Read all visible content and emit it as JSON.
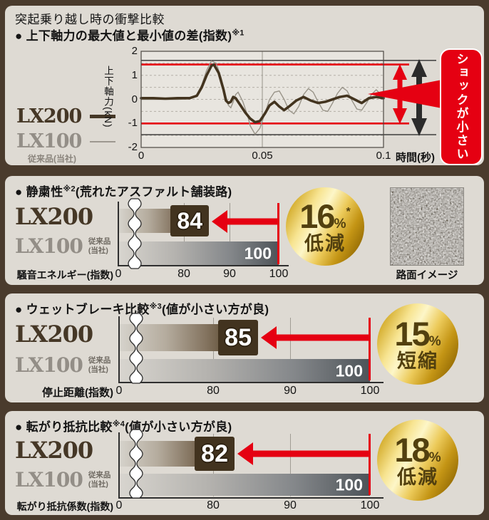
{
  "colors": {
    "background": "#4a3b2d",
    "panel": "#dedad3",
    "red": "#e50012",
    "lx200": "#453726",
    "lx100": "#938e87",
    "gold_text": "#52400f",
    "bar_dark": "#42331f"
  },
  "chart_data": [
    {
      "type": "line",
      "title": "突起乗り越し時の衝撃比較",
      "subtitle": "● 上下軸力の最大値と最小値の差(指数)",
      "subtitle_marker": "※1",
      "ylabel": "上下軸力(kN)",
      "xlabel_unit": "時間(秒)",
      "xlim": [
        0,
        0.1
      ],
      "ylim": [
        -2,
        2
      ],
      "yticks": [
        "2",
        "1",
        "0",
        "-1",
        "-2"
      ],
      "xticks": [
        "0",
        "0.05",
        "0.1"
      ],
      "grid": "dashed 0.5 steps",
      "hlines": {
        "lx200_max": 1.45,
        "lx200_min": -1.0,
        "lx100_max": 1.62,
        "lx100_min": -1.47
      },
      "annotation": "ショックが小さい",
      "series": [
        {
          "name": "LX100",
          "sub": "従来品(当社)",
          "x": [
            0,
            0.005,
            0.01,
            0.015,
            0.02,
            0.023,
            0.025,
            0.027,
            0.029,
            0.031,
            0.033,
            0.035,
            0.036,
            0.037,
            0.038,
            0.039,
            0.04,
            0.042,
            0.044,
            0.045,
            0.047,
            0.049,
            0.051,
            0.053,
            0.055,
            0.057,
            0.059,
            0.061,
            0.063,
            0.065,
            0.067,
            0.069,
            0.071,
            0.073,
            0.075,
            0.077,
            0.079,
            0.081,
            0.083,
            0.085,
            0.087,
            0.089,
            0.091,
            0.093,
            0.095,
            0.097,
            0.099,
            0.1
          ],
          "y": [
            0,
            0,
            0,
            0,
            0.02,
            0.2,
            0.6,
            1.2,
            1.6,
            1.5,
            0.9,
            0.1,
            -0.25,
            -0.35,
            -0.1,
            0.2,
            0.3,
            -0.1,
            -0.7,
            -1.1,
            -1.45,
            -1.2,
            -0.6,
            0.0,
            0.3,
            0.35,
            0.0,
            -0.45,
            -0.6,
            -0.3,
            0.2,
            0.45,
            0.3,
            -0.1,
            -0.45,
            -0.5,
            -0.15,
            0.25,
            0.5,
            0.35,
            -0.05,
            -0.4,
            -0.45,
            -0.15,
            0.2,
            0.4,
            0.2,
            0.1
          ]
        },
        {
          "name": "LX200",
          "x": [
            0,
            0.005,
            0.01,
            0.015,
            0.02,
            0.023,
            0.025,
            0.027,
            0.029,
            0.03,
            0.032,
            0.034,
            0.035,
            0.036,
            0.037,
            0.038,
            0.039,
            0.041,
            0.043,
            0.045,
            0.047,
            0.049,
            0.051,
            0.053,
            0.055,
            0.057,
            0.059,
            0.061,
            0.064,
            0.067,
            0.07,
            0.073,
            0.076,
            0.079,
            0.082,
            0.085,
            0.088,
            0.091,
            0.094,
            0.097,
            0.1
          ],
          "y": [
            0.05,
            0.05,
            0.03,
            0.05,
            0.05,
            0.15,
            0.5,
            1.0,
            1.4,
            1.45,
            1.1,
            0.4,
            -0.05,
            -0.15,
            -0.1,
            0.1,
            0.05,
            -0.25,
            -0.55,
            -0.8,
            -0.95,
            -0.9,
            -0.6,
            -0.25,
            -0.1,
            -0.3,
            -0.45,
            -0.3,
            -0.05,
            0.1,
            -0.05,
            -0.15,
            -0.1,
            0.0,
            0.1,
            0.15,
            0.0,
            -0.15,
            0.05,
            0.1,
            0.05
          ]
        }
      ]
    },
    {
      "type": "bar",
      "title": "● 静粛性",
      "marker": "※2",
      "title_suffix": "(荒れたアスファルト舗装路)",
      "categories": [
        "LX200",
        "LX100"
      ],
      "lx100_sub1": "従来品",
      "lx100_sub2": "(当社)",
      "values": [
        84,
        100
      ],
      "value_labels": [
        "84",
        "100"
      ],
      "xlabel": "騒音エネルギー(指数)",
      "xticks": [
        "0",
        "80",
        "90",
        "100"
      ],
      "axis_break": true,
      "xscale": {
        "x0": 159,
        "x80": 251,
        "x100": 384
      },
      "badge": {
        "value": "16",
        "percent": "%",
        "asterisk": "*",
        "word": "低減"
      },
      "road_label": "路面イメージ"
    },
    {
      "type": "bar",
      "title": "● ウェットブレーキ比較",
      "marker": "※3",
      "title_suffix": "(値が小さい方が良)",
      "categories": [
        "LX200",
        "LX100"
      ],
      "lx100_sub1": "従来品",
      "lx100_sub2": "(当社)",
      "values": [
        85,
        100
      ],
      "value_labels": [
        "85",
        "100"
      ],
      "xlabel": "停止距離(指数)",
      "xticks": [
        "0",
        "80",
        "90",
        "100"
      ],
      "axis_break": true,
      "xscale": {
        "x0": 160,
        "x80": 292,
        "x100": 512
      },
      "badge": {
        "value": "15",
        "percent": "%",
        "asterisk": "",
        "word": "短縮"
      }
    },
    {
      "type": "bar",
      "title": "● 転がり抵抗比較",
      "marker": "※4",
      "title_suffix": "(値が小さい方が良)",
      "categories": [
        "LX200",
        "LX100"
      ],
      "lx100_sub1": "従来品",
      "lx100_sub2": "(当社)",
      "values": [
        82,
        100
      ],
      "value_labels": [
        "82",
        "100"
      ],
      "xlabel": "転がり抵抗係数(指数)",
      "xticks": [
        "0",
        "80",
        "90",
        "100"
      ],
      "axis_break": true,
      "xscale": {
        "x0": 160,
        "x80": 292,
        "x100": 512
      },
      "badge": {
        "value": "18",
        "percent": "%",
        "asterisk": "",
        "word": "低減"
      }
    }
  ]
}
